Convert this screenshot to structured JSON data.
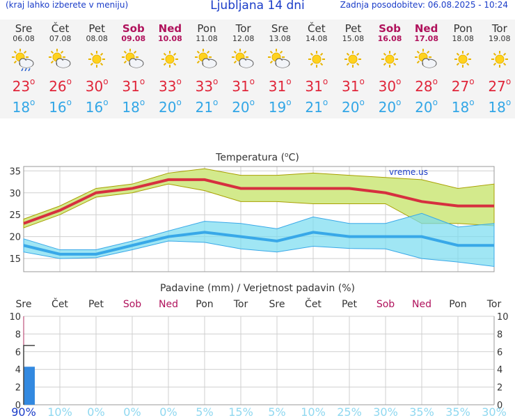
{
  "header": {
    "left_note": "(kraj lahko izberete v meniju)",
    "title": "Ljubljana 14 dni",
    "updated": "Zadnja posodobitev: 06.08.2025 - 10:24"
  },
  "colors": {
    "header_blue": "#1a3cc8",
    "weekend": "#b0125c",
    "max_temp": "#e0263a",
    "min_temp": "#32a6e6",
    "precip_bar": "#3389e0"
  },
  "days": [
    {
      "name": "Sre",
      "date": "06.08",
      "weekend": false,
      "icon": "sun-cloud-rain-icon",
      "tmax": "23",
      "tmin": "18"
    },
    {
      "name": "Čet",
      "date": "07.08",
      "weekend": false,
      "icon": "sun-cloud-icon",
      "tmax": "26",
      "tmin": "16"
    },
    {
      "name": "Pet",
      "date": "08.08",
      "weekend": false,
      "icon": "sun-icon",
      "tmax": "30",
      "tmin": "16"
    },
    {
      "name": "Sob",
      "date": "09.08",
      "weekend": true,
      "icon": "sun-cloud-icon",
      "tmax": "31",
      "tmin": "18"
    },
    {
      "name": "Ned",
      "date": "10.08",
      "weekend": true,
      "icon": "sun-icon",
      "tmax": "33",
      "tmin": "20"
    },
    {
      "name": "Pon",
      "date": "11.08",
      "weekend": false,
      "icon": "sun-cloud-icon",
      "tmax": "33",
      "tmin": "21"
    },
    {
      "name": "Tor",
      "date": "12.08",
      "weekend": false,
      "icon": "sun-cloud-icon",
      "tmax": "31",
      "tmin": "20"
    },
    {
      "name": "Sre",
      "date": "13.08",
      "weekend": false,
      "icon": "sun-cloud-icon",
      "tmax": "31",
      "tmin": "19"
    },
    {
      "name": "Čet",
      "date": "14.08",
      "weekend": false,
      "icon": "sun-icon",
      "tmax": "31",
      "tmin": "21"
    },
    {
      "name": "Pet",
      "date": "15.08",
      "weekend": false,
      "icon": "sun-icon",
      "tmax": "31",
      "tmin": "20"
    },
    {
      "name": "Sob",
      "date": "16.08",
      "weekend": true,
      "icon": "sun-icon",
      "tmax": "30",
      "tmin": "20"
    },
    {
      "name": "Ned",
      "date": "17.08",
      "weekend": true,
      "icon": "sun-cloud-icon",
      "tmax": "28",
      "tmin": "20"
    },
    {
      "name": "Pon",
      "date": "18.08",
      "weekend": false,
      "icon": "sun-icon",
      "tmax": "27",
      "tmin": "18"
    },
    {
      "name": "Tor",
      "date": "19.08",
      "weekend": false,
      "icon": "sun-icon",
      "tmax": "27",
      "tmin": "18"
    }
  ],
  "chart_data": [
    {
      "type": "line",
      "title": "Temperatura (°C)",
      "watermark": "vreme.us",
      "categories": [
        "Sre",
        "Čet",
        "Pet",
        "Sob",
        "Ned",
        "Pon",
        "Tor",
        "Sre",
        "Čet",
        "Pet",
        "Sob",
        "Ned",
        "Pon",
        "Tor"
      ],
      "ylim": [
        12,
        36
      ],
      "yticks": [
        15,
        20,
        25,
        30,
        35
      ],
      "grid": true,
      "series": [
        {
          "values": [
            23,
            26,
            30,
            31,
            33,
            33,
            31,
            31,
            31,
            31,
            30,
            28,
            27,
            27
          ],
          "upper": [
            24,
            27,
            31,
            32,
            34.5,
            35.5,
            34,
            34,
            34.5,
            34,
            33.5,
            33,
            31,
            32
          ],
          "lower": [
            22,
            25,
            29,
            30,
            32,
            30.5,
            28,
            28,
            27.5,
            27.5,
            27.5,
            23,
            23,
            22.5
          ]
        },
        {
          "values": [
            18,
            16,
            16,
            18,
            20,
            21,
            20,
            19,
            21,
            20,
            20,
            20,
            18,
            18
          ],
          "upper": [
            19.5,
            17,
            17,
            19,
            21.3,
            23.5,
            23,
            21.8,
            24.5,
            23,
            23,
            25.3,
            22.2,
            23
          ],
          "lower": [
            16.5,
            15,
            15.2,
            17,
            19,
            18.7,
            17.2,
            16.5,
            17.8,
            17.3,
            17.2,
            15,
            14.2,
            13.2
          ]
        }
      ]
    },
    {
      "type": "bar",
      "title": "Padavine (mm) / Verjetnost padavin (%)",
      "categories": [
        "Sre",
        "Čet",
        "Pet",
        "Sob",
        "Ned",
        "Pon",
        "Tor",
        "Sre",
        "Čet",
        "Pet",
        "Sob",
        "Ned",
        "Pon",
        "Tor"
      ],
      "values": [
        4.3,
        0,
        0,
        0,
        0,
        0,
        0,
        0,
        0,
        0,
        0,
        0,
        0,
        0
      ],
      "max_bracket": [
        6.7,
        0,
        0,
        0,
        0,
        0,
        0,
        0,
        0,
        0,
        0,
        0,
        0,
        0
      ],
      "ylim": [
        0,
        10
      ],
      "yticks": [
        0,
        2,
        4,
        6,
        8,
        10
      ],
      "probability": [
        "90%",
        "10%",
        "0%",
        "0%",
        "0%",
        "5%",
        "15%",
        "5%",
        "10%",
        "25%",
        "30%",
        "35%",
        "35%",
        "30%"
      ],
      "grid": true
    }
  ]
}
